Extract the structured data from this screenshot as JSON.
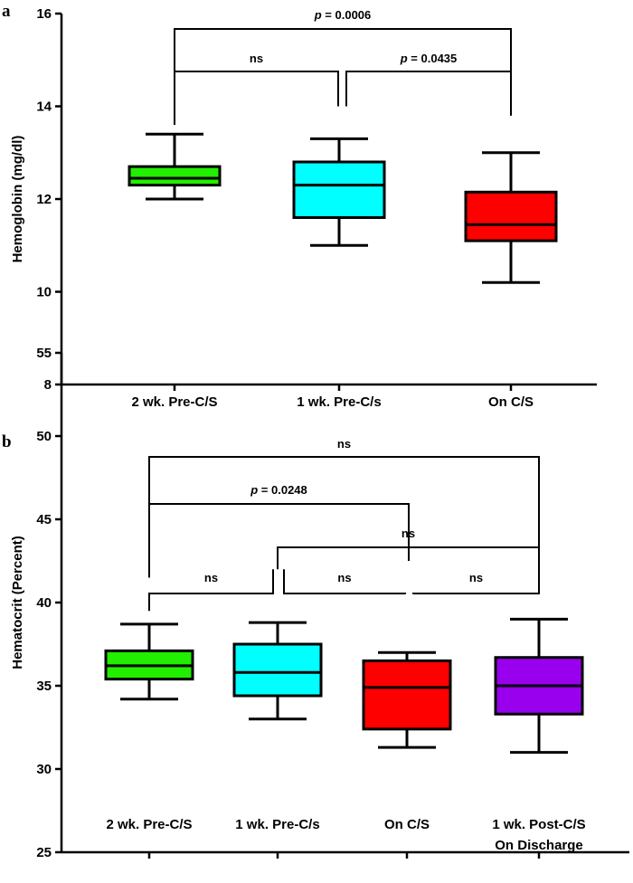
{
  "chart_data": [
    {
      "panel": "a",
      "type": "box",
      "ylabel": "Hemoglobin (mg/dl)",
      "ylim": [
        8,
        16
      ],
      "yticks": [
        8,
        10,
        12,
        14,
        16
      ],
      "categories": [
        "2 wk. Pre-C/S",
        "1 wk. Pre-C/s",
        "On C/S"
      ],
      "boxes": [
        {
          "name": "2 wk. Pre-C/S",
          "min": 12.0,
          "q1": 12.3,
          "median": 12.45,
          "q3": 12.7,
          "max": 13.4,
          "color": "#22ee00"
        },
        {
          "name": "1 wk. Pre-C/s",
          "min": 11.0,
          "q1": 11.6,
          "median": 12.3,
          "q3": 12.8,
          "max": 13.3,
          "color": "#00ffff"
        },
        {
          "name": "On C/S",
          "min": 10.2,
          "q1": 11.1,
          "median": 11.45,
          "q3": 12.15,
          "max": 13.0,
          "color": "#ff0000"
        }
      ],
      "brackets": [
        {
          "from": 0,
          "to": 2,
          "label_prefix": "p",
          "label_value": " = 0.0006",
          "left_end": 13.8,
          "right_end": 13.8
        },
        {
          "from": 0,
          "to": 1,
          "label": "ns",
          "left_end": 13.6,
          "right_end": 14.0
        },
        {
          "from": 1,
          "to": 2,
          "label_prefix": "p",
          "label_value": " = 0.0435",
          "left_end": 14.0,
          "right_end": 13.8
        }
      ]
    },
    {
      "panel": "b",
      "type": "box",
      "ylabel": "Hematocrit (Percent)",
      "ylim": [
        25,
        55
      ],
      "yticks": [
        25,
        30,
        35,
        40,
        45,
        50,
        55
      ],
      "categories": [
        "2 wk. Pre-C/S",
        "1 wk. Pre-C/s",
        "On C/S",
        "1 wk. Post-C/S"
      ],
      "category_sublabels": [
        "",
        "",
        "",
        "On Discharge"
      ],
      "boxes": [
        {
          "name": "2 wk. Pre-C/S",
          "min": 34.2,
          "q1": 35.4,
          "median": 36.2,
          "q3": 37.1,
          "max": 38.7,
          "color": "#22ee00"
        },
        {
          "name": "1 wk. Pre-C/s",
          "min": 33.0,
          "q1": 34.4,
          "median": 35.8,
          "q3": 37.5,
          "max": 38.8,
          "color": "#00ffff"
        },
        {
          "name": "On C/S",
          "min": 31.3,
          "q1": 32.4,
          "median": 34.9,
          "q3": 36.5,
          "max": 37.0,
          "color": "#ff0000"
        },
        {
          "name": "1 wk. Post-C/S On Discharge",
          "min": 31.0,
          "q1": 33.3,
          "median": 35.0,
          "q3": 36.7,
          "max": 39.0,
          "color": "#9900ee"
        }
      ],
      "brackets": [
        {
          "from": 0,
          "to": 3,
          "label": "ns",
          "left_end": 41.5,
          "right_end": 42.5
        },
        {
          "from": 0,
          "to": 2,
          "label_prefix": "p",
          "label_value": " = 0.0248",
          "left_end": 41.5,
          "right_end": 42.5
        },
        {
          "from": 1,
          "to": 3,
          "label": "ns",
          "left_end": 42.0,
          "right_end": 42.5
        },
        {
          "from": 0,
          "to": 1,
          "label": "ns",
          "left_end": 39.5,
          "right_end": 42.0
        },
        {
          "from": 1,
          "to": 2,
          "label": "ns",
          "left_end": 42.0,
          "right_end": 40.5
        },
        {
          "from": 2,
          "to": 3,
          "label": "ns",
          "left_end": 40.5,
          "right_end": 42.5
        }
      ]
    }
  ]
}
